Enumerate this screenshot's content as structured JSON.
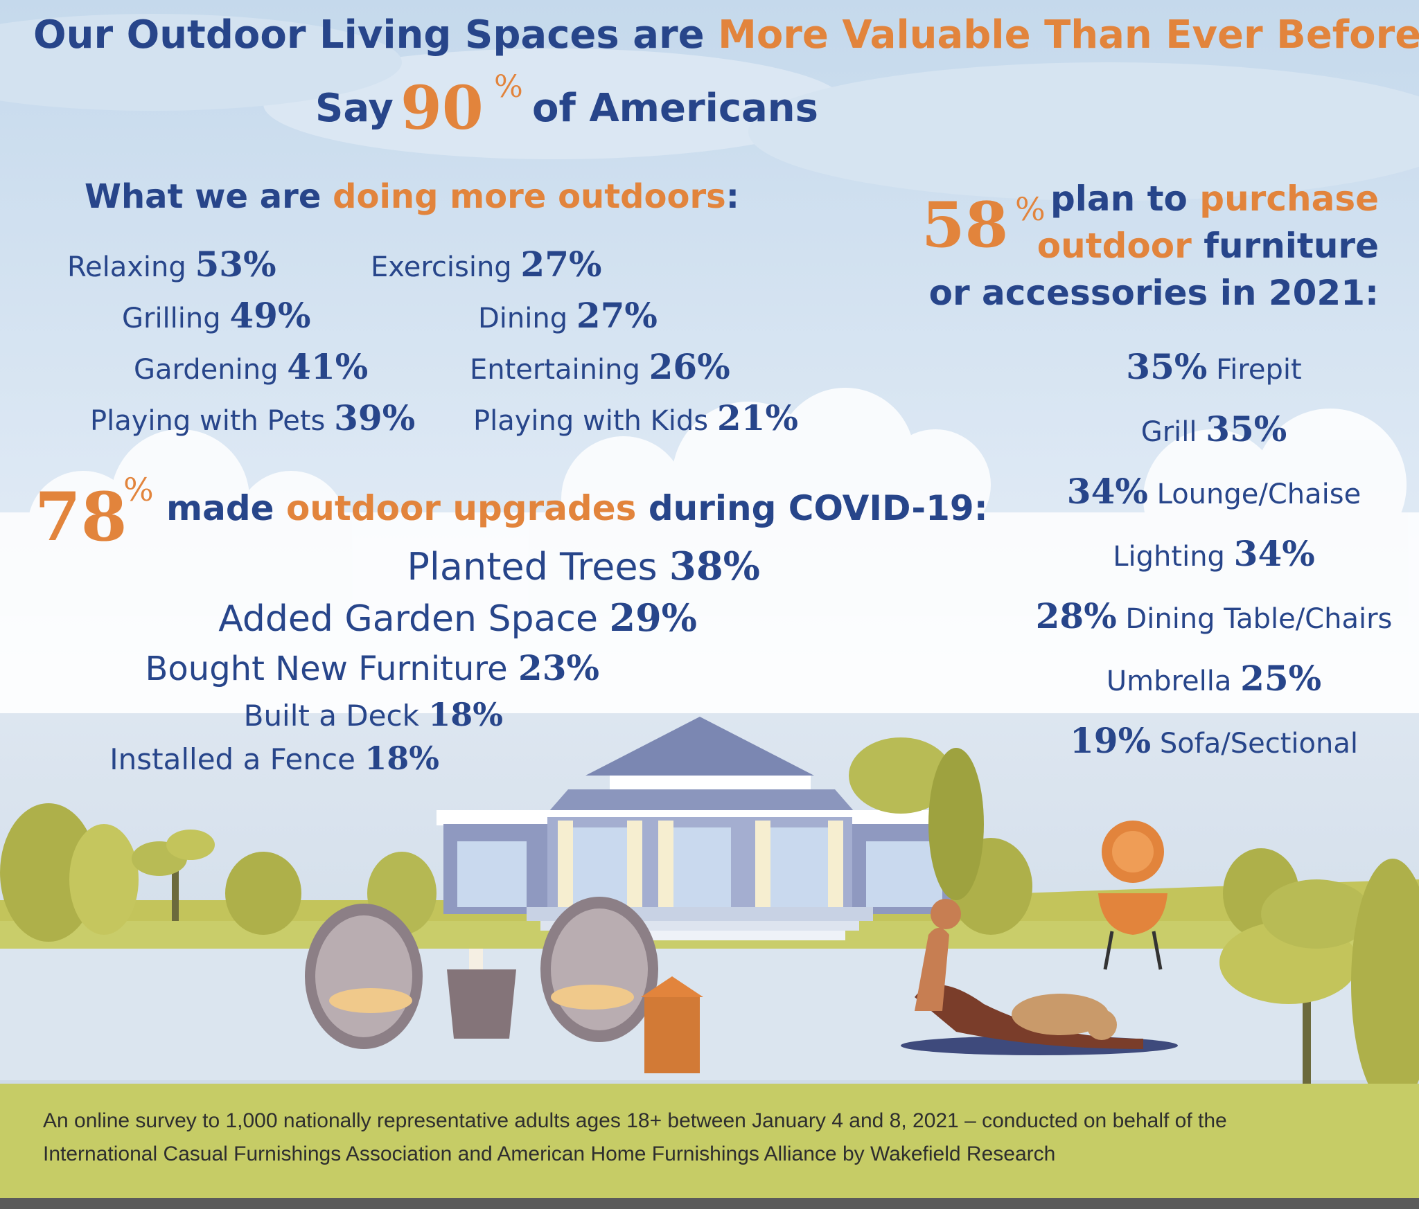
{
  "header": {
    "title_part1": "Our Outdoor Living Spaces are ",
    "title_part2": "More Valuable Than Ever Before",
    "subtitle_say": "Say",
    "subtitle_number": "90",
    "subtitle_percent": "%",
    "subtitle_rest": "of Americans"
  },
  "doing_more": {
    "heading_part1": "What we are ",
    "heading_part2": "doing more outdoors",
    "heading_part3": ":",
    "items": [
      {
        "label": "Relaxing",
        "value": "53%"
      },
      {
        "label": "Grilling",
        "value": "49%"
      },
      {
        "label": "Gardening",
        "value": "41%"
      },
      {
        "label": "Playing with Pets",
        "value": "39%"
      },
      {
        "label": "Exercising",
        "value": "27%"
      },
      {
        "label": "Dining",
        "value": "27%"
      },
      {
        "label": "Entertaining",
        "value": "26%"
      },
      {
        "label": "Playing with Kids",
        "value": "21%"
      }
    ]
  },
  "upgrades": {
    "number": "78",
    "percent": "%",
    "heading_part1": "made ",
    "heading_part2": "outdoor upgrades",
    "heading_part3": " during COVID-19:",
    "items": [
      {
        "label": "Planted Trees",
        "value": "38%"
      },
      {
        "label": "Added Garden Space",
        "value": "29%"
      },
      {
        "label": "Bought New Furniture",
        "value": "23%"
      },
      {
        "label": "Built a Deck",
        "value": "18%"
      },
      {
        "label": "Installed a Fence",
        "value": "18%"
      }
    ]
  },
  "purchase": {
    "number": "58",
    "percent": "%",
    "line1_part1": "plan to ",
    "line1_part2": "purchase",
    "line2_part1": "outdoor",
    "line2_part2": " furniture",
    "line3": "or accessories in 2021:",
    "items": [
      {
        "label": "Firepit",
        "value": "35%",
        "value_first": true
      },
      {
        "label": "Grill",
        "value": "35%",
        "value_first": false
      },
      {
        "label": "Lounge/Chaise",
        "value": "34%",
        "value_first": true
      },
      {
        "label": "Lighting",
        "value": "34%",
        "value_first": false
      },
      {
        "label": "Dining Table/Chairs",
        "value": "28%",
        "value_first": true
      },
      {
        "label": "Umbrella",
        "value": "25%",
        "value_first": false
      },
      {
        "label": "Sofa/Sectional",
        "value": "19%",
        "value_first": true
      }
    ]
  },
  "footer": {
    "line1": "An online survey to 1,000 nationally representative adults ages 18+ between January 4 and 8, 2021 – conducted on behalf of the",
    "line2": "International Casual Furnishings Association and American Home Furnishings Alliance by Wakefield Research"
  },
  "colors": {
    "navy": "#27458a",
    "orange": "#e2843c",
    "sky_top": "#c9dcee",
    "lawn": "#c3c45b",
    "footer_band": "#c6cc66"
  }
}
